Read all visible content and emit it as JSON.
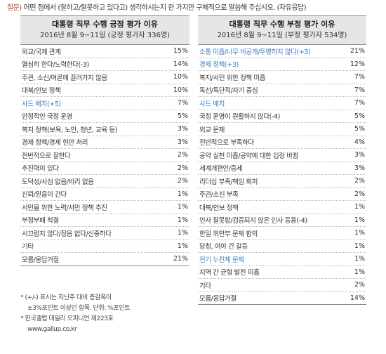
{
  "question": {
    "prefix": "질문)",
    "text": " 어떤 점에서 (잘하고/잘못하고 있다고) 생각하시는지 한 가지만 구체적으로 말씀해 주십시오. (자유응답)"
  },
  "positive": {
    "title": "대통령 직무 수행 긍정 평가 이유",
    "subtitle": "2016년 8월 9~11일 (긍정 평가자 336명)",
    "rows": [
      {
        "label": "외교/국제 관계",
        "value": "15%",
        "highlight": false
      },
      {
        "label": "열심히 한다/노력한다(-3)",
        "value": "14%",
        "highlight": false
      },
      {
        "label": "주관, 소신/여론에 끌려가지 않음",
        "value": "10%",
        "highlight": false
      },
      {
        "label": "대북/안보 정책",
        "value": "10%",
        "highlight": false
      },
      {
        "label": "사드 배치(+5)",
        "value": "7%",
        "highlight": true
      },
      {
        "label": "안정적인 국정 운영",
        "value": "5%",
        "highlight": false
      },
      {
        "label": "복지 정책(보육, 노인, 청년, 교육 등)",
        "value": "3%",
        "highlight": false
      },
      {
        "label": "경제 정책/경제 현안 처리",
        "value": "3%",
        "highlight": false
      },
      {
        "label": "전반적으로 잘한다",
        "value": "2%",
        "highlight": false
      },
      {
        "label": "추진력이 있다",
        "value": "2%",
        "highlight": false
      },
      {
        "label": "도덕성/사심 없음/비리 없음",
        "value": "2%",
        "highlight": false
      },
      {
        "label": "신뢰/믿음이 간다",
        "value": "1%",
        "highlight": false
      },
      {
        "label": "서민을 위한 노력/서민 정책 추진",
        "value": "1%",
        "highlight": false
      },
      {
        "label": "부정부패 척결",
        "value": "1%",
        "highlight": false
      },
      {
        "label": "시끄럽지 않다/잡음 없다/신중하다",
        "value": "1%",
        "highlight": false
      },
      {
        "label": "기타",
        "value": "1%",
        "highlight": false
      },
      {
        "label": "모름/응답거절",
        "value": "21%",
        "highlight": false
      }
    ]
  },
  "negative": {
    "title": "대통령 직무 수행 부정 평가 이유",
    "subtitle": "2016년 8월 9~11일 (부정 평가자 534명)",
    "rows": [
      {
        "label": "소통 미흡/너무 비공개/투명하지 않다(+3)",
        "value": "21%",
        "highlight": true
      },
      {
        "label": "경제 정책(+3)",
        "value": "12%",
        "highlight": true
      },
      {
        "label": "복지/서민 위한 정책 미흡",
        "value": "7%",
        "highlight": false
      },
      {
        "label": "독선/독단적/자기 중심",
        "value": "7%",
        "highlight": false
      },
      {
        "label": "사드 배치",
        "value": "7%",
        "highlight": true
      },
      {
        "label": "국정 운영이 원활하지 않다(-4)",
        "value": "5%",
        "highlight": false
      },
      {
        "label": "외교 문제",
        "value": "5%",
        "highlight": false
      },
      {
        "label": "전반적으로 부족하다",
        "value": "4%",
        "highlight": false
      },
      {
        "label": "공약 실천 미흡/공약에 대한 입장 바뀜",
        "value": "3%",
        "highlight": false
      },
      {
        "label": "세계개편안/증세",
        "value": "3%",
        "highlight": false
      },
      {
        "label": "리더십 부족/책임 회피",
        "value": "2%",
        "highlight": false
      },
      {
        "label": "주관/소신 부족",
        "value": "2%",
        "highlight": false
      },
      {
        "label": "대북/안보 정책",
        "value": "1%",
        "highlight": false
      },
      {
        "label": "인사 잘못함/검증되지 않은 인사 등용(-4)",
        "value": "1%",
        "highlight": false
      },
      {
        "label": "한일 위안부 문제 합의",
        "value": "1%",
        "highlight": false
      },
      {
        "label": "당청, 여야 간 갈등",
        "value": "1%",
        "highlight": false
      },
      {
        "label": "전기 누진제 문제",
        "value": "1%",
        "highlight": true
      },
      {
        "label": "지역 간 균형 발전 미흡",
        "value": "1%",
        "highlight": false
      },
      {
        "label": "기타",
        "value": "2%",
        "highlight": false
      },
      {
        "label": "모름/응답거절",
        "value": "14%",
        "highlight": false
      }
    ]
  },
  "footnotes": [
    "* (+/-) 표시는 지난주 대비 증감폭이",
    "±3%포인트 이상인 항목. 단위: %포인트",
    "* 한국갤럽 데일리 오피니언 제223호",
    "www.gallup.co.kr"
  ],
  "colors": {
    "question_label": "#c0392b",
    "highlight_text": "#3d7ab8",
    "header_bg": "#e6e6e6"
  }
}
